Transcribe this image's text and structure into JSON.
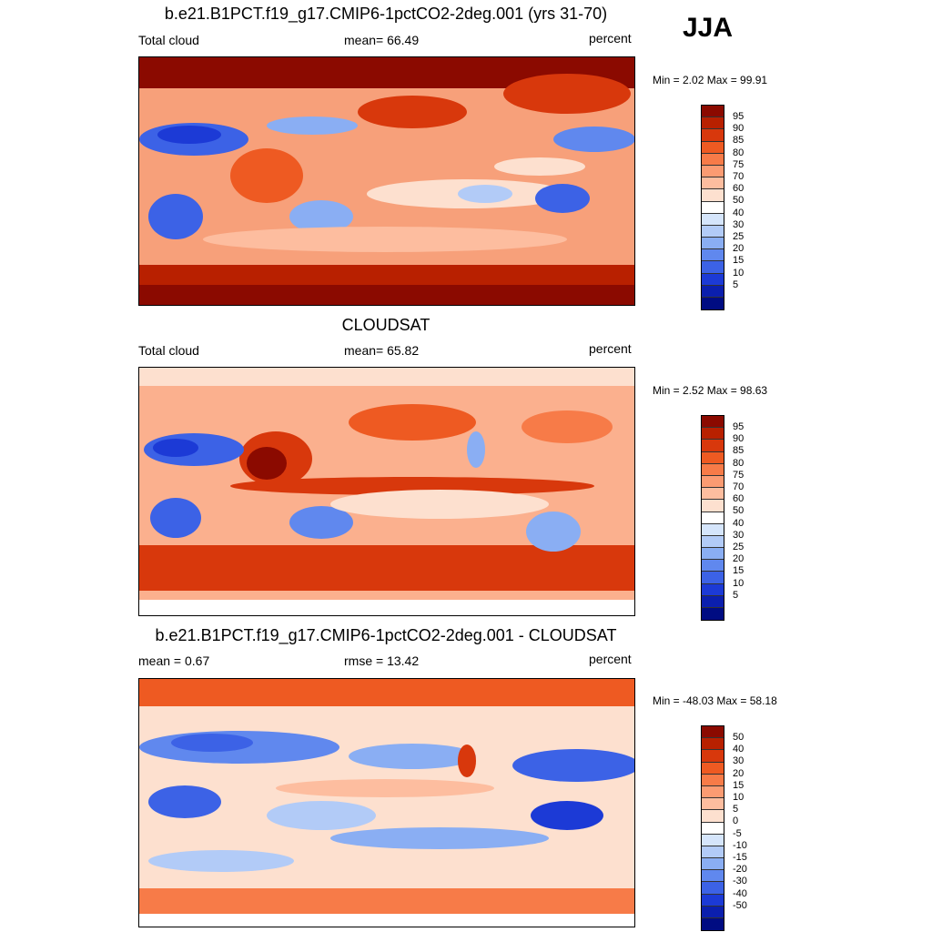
{
  "season": "JJA",
  "panels": [
    {
      "title": "b.e21.B1PCT.f19_g17.CMIP6-1pctCO2-2deg.001 (yrs 31-70)",
      "left_label": "Total cloud",
      "center_label": "mean=  66.49",
      "right_label": "percent",
      "minmax": "Min =   2.02 Max =  99.91"
    },
    {
      "title": "CLOUDSAT",
      "left_label": "Total cloud",
      "center_label": "mean=  65.82",
      "right_label": "percent",
      "minmax": "Min =   2.52 Max =  98.63"
    },
    {
      "title": "b.e21.B1PCT.f19_g17.CMIP6-1pctCO2-2deg.001 - CLOUDSAT",
      "left_label": "mean =   0.67",
      "center_label": "rmse =  13.42",
      "right_label": "percent",
      "minmax": "Min = -48.03 Max =  58.18"
    }
  ],
  "colorbar_abs": {
    "labels": [
      "95",
      "90",
      "85",
      "80",
      "75",
      "70",
      "60",
      "50",
      "40",
      "30",
      "25",
      "20",
      "15",
      "10",
      "5"
    ],
    "colors": [
      "#8b0a00",
      "#b82000",
      "#d8380c",
      "#ee5a22",
      "#f77b48",
      "#fb9b72",
      "#fdbd9f",
      "#fde0cf",
      "#ffffff",
      "#d5e5fb",
      "#b2cbf7",
      "#8aaef3",
      "#6088ee",
      "#3c62e6",
      "#1c3ad6",
      "#0b1fae",
      "#000c82"
    ]
  },
  "colorbar_diff": {
    "labels": [
      "50",
      "40",
      "30",
      "20",
      "15",
      "10",
      "5",
      "0",
      "-5",
      "-10",
      "-15",
      "-20",
      "-30",
      "-40",
      "-50"
    ],
    "colors": [
      "#8b0a00",
      "#b82000",
      "#d8380c",
      "#ee5a22",
      "#f77b48",
      "#fb9b72",
      "#fdbd9f",
      "#fde0cf",
      "#ffffff",
      "#d5e5fb",
      "#b2cbf7",
      "#8aaef3",
      "#6088ee",
      "#3c62e6",
      "#1c3ad6",
      "#0b1fae",
      "#000c82"
    ]
  }
}
